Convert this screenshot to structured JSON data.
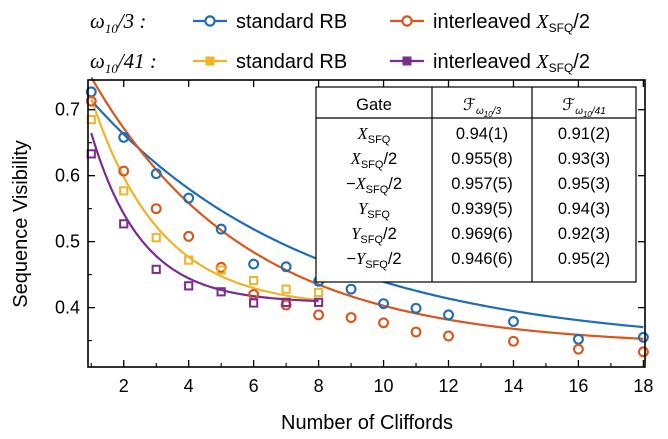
{
  "chart_data": {
    "type": "scatter",
    "xlabel": "Number of Cliffords",
    "ylabel": "Sequence Visibility",
    "xlim": [
      0.9,
      18.05
    ],
    "ylim": [
      0.31,
      0.745
    ],
    "xticks": [
      2,
      4,
      6,
      8,
      10,
      12,
      14,
      16,
      18
    ],
    "yticks": [
      0.4,
      0.5,
      0.6,
      0.7
    ],
    "xticklabels": [
      "2",
      "4",
      "6",
      "8",
      "10",
      "12",
      "14",
      "16",
      "18"
    ],
    "yticklabels": [
      "0.4",
      "0.5",
      "0.6",
      "0.7"
    ],
    "grid": false,
    "legend_groups": [
      {
        "label": "ω₁₀/3 :",
        "entries": [
          "standard RB",
          "interleaved X_SFQ/2"
        ]
      },
      {
        "label": "ω₁₀/41 :",
        "entries": [
          "standard RB",
          "interleaved X_SFQ/2"
        ]
      }
    ],
    "series": [
      {
        "name": "standard RB",
        "group": "ω₁₀/3",
        "color": "#1f6db5",
        "marker": "circle",
        "x": [
          1,
          2,
          3,
          4,
          5,
          6,
          7,
          8,
          9,
          10,
          11,
          12,
          14,
          16,
          18
        ],
        "y": [
          0.727,
          0.658,
          0.603,
          0.566,
          0.519,
          0.466,
          0.462,
          0.44,
          0.428,
          0.406,
          0.399,
          0.389,
          0.379,
          0.352,
          0.355
        ],
        "fit": {
          "A": 0.4335,
          "p": 0.8627,
          "B": 0.3401
        }
      },
      {
        "name": "interleaved X_SFQ/2",
        "group": "ω₁₀/3",
        "color": "#d9561d",
        "marker": "circle",
        "x": [
          1,
          2,
          3,
          4,
          5,
          6,
          7,
          8,
          9,
          10,
          11,
          12,
          14,
          16,
          18
        ],
        "y": [
          0.713,
          0.607,
          0.55,
          0.508,
          0.461,
          0.42,
          0.404,
          0.389,
          0.385,
          0.377,
          0.363,
          0.357,
          0.349,
          0.337,
          0.333
        ],
        "fit": {
          "A": 0.5032,
          "p": 0.8105,
          "B": 0.3413
        }
      },
      {
        "name": "standard RB",
        "group": "ω₁₀/41",
        "color": "#f0b429",
        "marker": "square",
        "x": [
          1,
          2,
          3,
          4,
          5,
          6,
          7,
          8
        ],
        "y": [
          0.685,
          0.577,
          0.506,
          0.472,
          0.457,
          0.441,
          0.428,
          0.423
        ],
        "fit": {
          "A": 0.5106,
          "p": 0.6231,
          "B": 0.3997
        }
      },
      {
        "name": "interleaved X_SFQ/2",
        "group": "ω₁₀/41",
        "color": "#7b2d8e",
        "marker": "square",
        "x": [
          1,
          2,
          3,
          4,
          5,
          6,
          7,
          8
        ],
        "y": [
          0.633,
          0.527,
          0.458,
          0.433,
          0.424,
          0.407,
          0.408,
          0.408
        ],
        "fit": {
          "A": 0.4904,
          "p": 0.5253,
          "B": 0.4071
        }
      }
    ],
    "table": {
      "headers": [
        "Gate",
        "F_ω10/3",
        "F_ω10/41"
      ],
      "rows": [
        [
          "X_SFQ",
          "0.94(1)",
          "0.91(2)"
        ],
        [
          "X_SFQ/2",
          "0.955(8)",
          "0.93(3)"
        ],
        [
          "−X_SFQ/2",
          "0.957(5)",
          "0.95(3)"
        ],
        [
          "Y_SFQ",
          "0.939(5)",
          "0.94(3)"
        ],
        [
          "Y_SFQ/2",
          "0.969(6)",
          "0.92(3)"
        ],
        [
          "−Y_SFQ/2",
          "0.946(6)",
          "0.95(2)"
        ]
      ]
    }
  }
}
